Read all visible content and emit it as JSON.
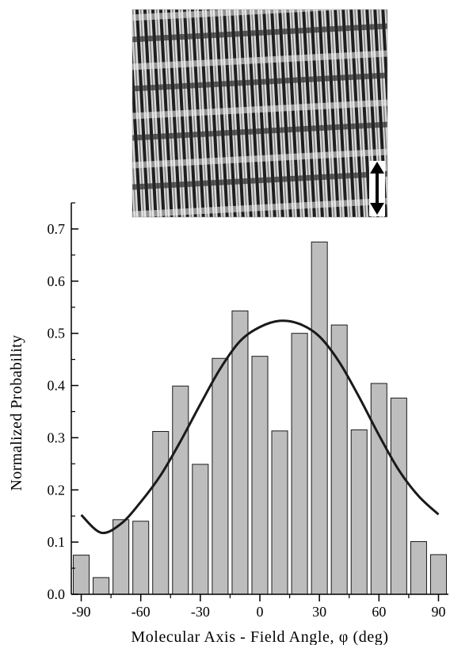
{
  "chart_data": {
    "type": "bar",
    "title": "",
    "xlabel": "Molecular Axis - Field Angle, φ (deg)",
    "ylabel": "Normalized Probability",
    "xlim": [
      -95,
      95
    ],
    "ylim": [
      0,
      0.75
    ],
    "xticks": [
      -90,
      -60,
      -30,
      0,
      30,
      60,
      90
    ],
    "xtick_labels": [
      "-90",
      "-60",
      "-30",
      "0",
      "30",
      "60",
      "90"
    ],
    "yticks": [
      0.0,
      0.1,
      0.2,
      0.3,
      0.4,
      0.5,
      0.6,
      0.7
    ],
    "ytick_labels": [
      "0.0",
      "0.1",
      "0.2",
      "0.3",
      "0.4",
      "0.5",
      "0.6",
      "0.7"
    ],
    "bar_width_deg": 8,
    "bars": {
      "x": [
        -90,
        -80,
        -70,
        -60,
        -50,
        -40,
        -30,
        -20,
        -10,
        0,
        10,
        20,
        30,
        40,
        50,
        60,
        70,
        80,
        90
      ],
      "values": [
        0.075,
        0.032,
        0.143,
        0.14,
        0.312,
        0.399,
        0.249,
        0.452,
        0.543,
        0.456,
        0.313,
        0.5,
        0.675,
        0.516,
        0.315,
        0.404,
        0.376,
        0.101,
        0.076
      ],
      "fill": "#bdbdbd",
      "stroke": "#1a1a1a"
    },
    "fit_curve": {
      "x": [
        -90,
        -80,
        -70,
        -60,
        -50,
        -40,
        -30,
        -20,
        -10,
        0,
        10,
        20,
        30,
        40,
        50,
        60,
        70,
        80,
        90
      ],
      "values": [
        0.152,
        0.118,
        0.135,
        0.177,
        0.228,
        0.293,
        0.364,
        0.432,
        0.485,
        0.512,
        0.524,
        0.518,
        0.494,
        0.445,
        0.378,
        0.305,
        0.238,
        0.188,
        0.153
      ],
      "color": "#1a1a1a"
    },
    "grid": false,
    "legend": "none",
    "inset_image": {
      "description_for_rendering_only": "",
      "arrow": "double-headed-vertical"
    }
  }
}
